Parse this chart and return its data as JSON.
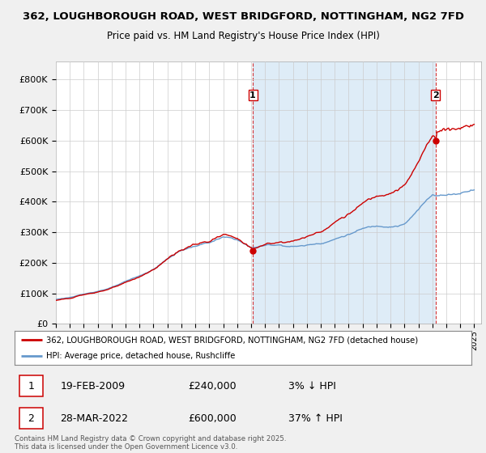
{
  "title1": "362, LOUGHBOROUGH ROAD, WEST BRIDGFORD, NOTTINGHAM, NG2 7FD",
  "title2": "Price paid vs. HM Land Registry's House Price Index (HPI)",
  "legend_line1": "362, LOUGHBOROUGH ROAD, WEST BRIDGFORD, NOTTINGHAM, NG2 7FD (detached house)",
  "legend_line2": "HPI: Average price, detached house, Rushcliffe",
  "annotation1_date": "19-FEB-2009",
  "annotation1_price": "£240,000",
  "annotation1_pct": "3% ↓ HPI",
  "annotation2_date": "28-MAR-2022",
  "annotation2_price": "£600,000",
  "annotation2_pct": "37% ↑ HPI",
  "footer": "Contains HM Land Registry data © Crown copyright and database right 2025.\nThis data is licensed under the Open Government Licence v3.0.",
  "ylabel_ticks": [
    "£0",
    "£100K",
    "£200K",
    "£300K",
    "£400K",
    "£500K",
    "£600K",
    "£700K",
    "£800K"
  ],
  "ytick_values": [
    0,
    100000,
    200000,
    300000,
    400000,
    500000,
    600000,
    700000,
    800000
  ],
  "ylim": [
    0,
    860000
  ],
  "sale1_x": 2009.12,
  "sale1_y": 240000,
  "sale2_x": 2022.23,
  "sale2_y": 600000,
  "vline1_x": 2009.12,
  "vline2_x": 2022.23,
  "xmin": 1995.0,
  "xmax": 2025.5,
  "red_color": "#cc0000",
  "blue_color": "#6699cc",
  "fill_color": "#d0e4f5",
  "background_color": "#f0f0f0",
  "plot_bg": "#ffffff"
}
